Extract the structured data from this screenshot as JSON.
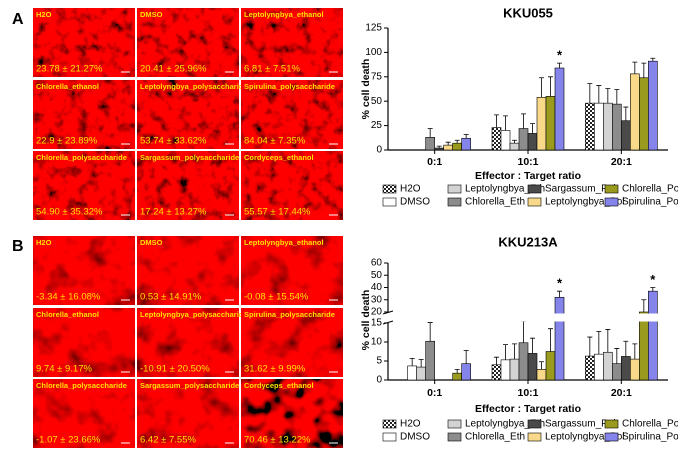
{
  "panel_labels": [
    "A",
    "B"
  ],
  "image_grids": [
    [
      {
        "name": "H2O",
        "value": "23.78 ± 21.27%"
      },
      {
        "name": "DMSO",
        "value": "20.41 ± 25.96%"
      },
      {
        "name": "Leptolyngbya_ethanol",
        "value": "6.81 ± 7.51%"
      },
      {
        "name": "Chlorella_ethanol",
        "value": "22.9 ± 23.89%"
      },
      {
        "name": "Leptolyngbya_polysaccharide",
        "value": "53.74 ± 33.62%"
      },
      {
        "name": "Spirulina_polysaccharide",
        "value": "84.04 ± 7.35%"
      },
      {
        "name": "Chlorella_polysaccharide",
        "value": "54.90 ± 35.32%"
      },
      {
        "name": "Sargassum_polysaccharide",
        "value": "17.24 ± 13.27%"
      },
      {
        "name": "Cordyceps_ethanol",
        "value": "55.57 ± 17.44%"
      }
    ],
    [
      {
        "name": "H2O",
        "value": "-3.34 ± 16.08%"
      },
      {
        "name": "DMSO",
        "value": "0.53 ± 14.91%"
      },
      {
        "name": "Leptolyngbya_ethanol",
        "value": "-0.08 ± 15.54%"
      },
      {
        "name": "Chlorella_ethanol",
        "value": "9.74 ± 9.17%"
      },
      {
        "name": "Leptolyngbya_polysaccharide",
        "value": "-10.91 ± 20.50%"
      },
      {
        "name": "Spirulina_polysaccharide",
        "value": "31.62 ± 9.99%"
      },
      {
        "name": "Chlorella_polysaccharide",
        "value": "-1.07 ± 23.66%"
      },
      {
        "name": "Sargassum_polysaccharide",
        "value": "6.42 ± 7.55%"
      },
      {
        "name": "Cordyceps_ethanol",
        "value": "70.46 ± 13.22%"
      }
    ]
  ],
  "chart_data": [
    {
      "type": "bar",
      "title": "KKU055",
      "y_label": "% cell death",
      "x_label": "Effector : Target ratio",
      "categories": [
        "0:1",
        "10:1",
        "20:1"
      ],
      "ylim": [
        0,
        125
      ],
      "yticks": [
        0,
        25,
        50,
        75,
        100,
        125
      ],
      "series": [
        {
          "name": "H2O",
          "color": "#222222",
          "pattern": "checker",
          "values": [
            0,
            23,
            48
          ],
          "errors": [
            0,
            13,
            20
          ]
        },
        {
          "name": "DMSO",
          "color": "#ffffff",
          "values": [
            0,
            20,
            48
          ],
          "errors": [
            0,
            15,
            18
          ]
        },
        {
          "name": "Leptolyngbya_Eth",
          "color": "#d3d3d3",
          "values": [
            0,
            7,
            48
          ],
          "errors": [
            0,
            3,
            15
          ]
        },
        {
          "name": "Chlorella_Eth",
          "color": "#8c8c8c",
          "values": [
            13,
            22,
            47
          ],
          "errors": [
            9,
            15,
            15
          ]
        },
        {
          "name": "Sargassum_Pol",
          "color": "#4a4a4a",
          "values": [
            2,
            17,
            30
          ],
          "errors": [
            2,
            10,
            14
          ]
        },
        {
          "name": "Leptolyngbya_Pol",
          "color": "#f8d98a",
          "values": [
            5,
            54,
            78
          ],
          "errors": [
            3,
            20,
            12
          ]
        },
        {
          "name": "Chlorella_Pol",
          "color": "#9a9a1e",
          "values": [
            7,
            55,
            74
          ],
          "errors": [
            3,
            20,
            15
          ]
        },
        {
          "name": "Spirulina_Pol",
          "color": "#8484ea",
          "values": [
            12,
            84,
            91
          ],
          "errors": [
            4,
            5,
            3
          ],
          "annotations": [
            null,
            "*",
            null
          ]
        }
      ]
    },
    {
      "type": "bar",
      "title": "KKU213A",
      "y_label": "% cell death",
      "x_label": "Effector : Target ratio",
      "categories": [
        "0:1",
        "10:1",
        "20:1"
      ],
      "segments": [
        {
          "ylim": [
            0,
            15
          ],
          "yticks": [
            0,
            5,
            10,
            15
          ]
        },
        {
          "ylim": [
            20,
            60
          ],
          "yticks": [
            20,
            30,
            40,
            50,
            60
          ]
        }
      ],
      "series": [
        {
          "name": "H2O",
          "color": "#222222",
          "pattern": "checker",
          "values": [
            0,
            4,
            6.3
          ],
          "errors": [
            0,
            2,
            5
          ]
        },
        {
          "name": "DMSO",
          "color": "#ffffff",
          "values": [
            3.7,
            5.3,
            6.8
          ],
          "errors": [
            2,
            4,
            6
          ]
        },
        {
          "name": "Leptolyngbya_Eth",
          "color": "#d3d3d3",
          "values": [
            3.4,
            5.5,
            7.3
          ],
          "errors": [
            2,
            4,
            6
          ]
        },
        {
          "name": "Chlorella_Eth",
          "color": "#8c8c8c",
          "values": [
            10.2,
            9.8,
            4.3
          ],
          "errors": [
            5,
            6,
            4
          ]
        },
        {
          "name": "Sargassum_Pol",
          "color": "#4a4a4a",
          "values": [
            0,
            7,
            6.2
          ],
          "errors": [
            0,
            4,
            4
          ]
        },
        {
          "name": "Leptolyngbya_Pol",
          "color": "#f8d98a",
          "values": [
            0,
            2.8,
            5.5
          ],
          "errors": [
            0,
            2,
            4
          ]
        },
        {
          "name": "Chlorella_Pol",
          "color": "#9a9a1e",
          "values": [
            1.8,
            7.5,
            20
          ],
          "errors": [
            1,
            6,
            10
          ]
        },
        {
          "name": "Spirulina_Pol",
          "color": "#8484ea",
          "values": [
            4.3,
            32,
            37
          ],
          "errors": [
            3.5,
            5,
            3
          ],
          "annotations": [
            null,
            "*",
            "*"
          ]
        }
      ]
    }
  ]
}
